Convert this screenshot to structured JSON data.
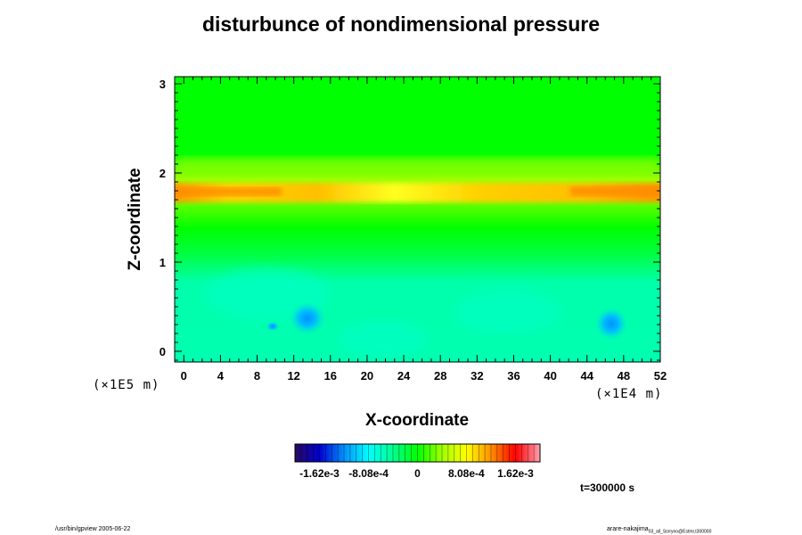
{
  "chart_data": {
    "type": "heatmap",
    "title": "disturbunce of nondimensional pressure",
    "xlabel": "X-coordinate",
    "ylabel": "Z-coordinate",
    "x_unit": "(×1E4 m)",
    "y_unit": "(×1E5 m)",
    "xlim": [
      -1,
      52
    ],
    "ylim": [
      -0.12,
      3.08
    ],
    "x_ticks": [
      "0",
      "4",
      "8",
      "12",
      "16",
      "20",
      "24",
      "28",
      "32",
      "36",
      "40",
      "44",
      "48",
      "52"
    ],
    "y_ticks": [
      "0",
      "1",
      "2",
      "3"
    ],
    "grid": false,
    "colorbar": {
      "range": [
        -0.002025,
        0.002025
      ],
      "tick_labels": [
        "-1.62e-3",
        "-8.08e-4",
        "0",
        "8.08e-4",
        "1.62e-3"
      ],
      "tick_values": [
        -0.00162,
        -0.000808,
        0,
        0.000808,
        0.00162
      ],
      "colors": [
        "#2a0a5e",
        "#0000d0",
        "#0090ff",
        "#00ffff",
        "#00ff90",
        "#00ff00",
        "#a0ff00",
        "#ffff00",
        "#ff9000",
        "#ff0000",
        "#ffa0b0"
      ]
    },
    "field_features": [
      {
        "label": "positive band",
        "z": 1.78,
        "value": 0.0012
      },
      {
        "label": "weak positive band",
        "z": 2.1,
        "value": 0.0003
      },
      {
        "label": "negative region",
        "z_range": [
          0,
          1.0
        ],
        "value": -0.0004
      },
      {
        "label": "negative cell",
        "x": 13.5,
        "z": 0.37,
        "value": -0.00085
      },
      {
        "label": "negative cell",
        "x": 46.5,
        "z": 0.33,
        "value": -0.00085
      },
      {
        "label": "negative cell",
        "x": 9.2,
        "z": 0.27,
        "value": -0.0007
      }
    ],
    "annotations": {
      "time": "t=300000 s",
      "footer_left": "/usr/bin/gpview 2005-06-22",
      "footer_right_main": "arare-nakajima",
      "footer_right_sub": "03_all_Ssrryno@Estmr,t300000"
    }
  }
}
